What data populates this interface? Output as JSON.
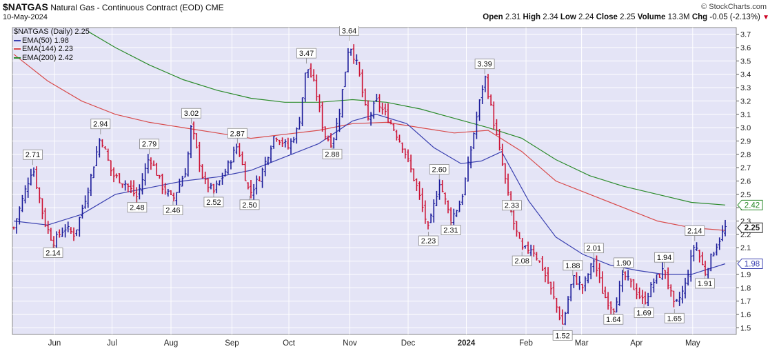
{
  "header": {
    "symbol": "$NATGAS",
    "description": "Natural Gas - Continuous Contract (EOD)",
    "exchange": "CME",
    "date": "10-May-2024",
    "brand": "© StockCharts.com",
    "quote": {
      "open_label": "Open",
      "open": "2.31",
      "high_label": "High",
      "high": "2.34",
      "low_label": "Low",
      "low": "2.24",
      "close_label": "Close",
      "close": "2.25",
      "volume_label": "Volume",
      "volume": "13.3M",
      "chg_label": "Chg",
      "chg": "-0.05 (-2.13%)"
    }
  },
  "legend": {
    "main": "$NATGAS (Daily) 2.25",
    "ema50": "EMA(50) 1.98",
    "ema144": "EMA(144) 2.23",
    "ema200": "EMA(200) 2.42"
  },
  "colors": {
    "plot_bg": "#e4e4f6",
    "grid": "#ffffff",
    "up": "#1a1a99",
    "down": "#cc1133",
    "ema50": "#3a40b0",
    "ema144": "#d84a4a",
    "ema200": "#2a8a2a"
  },
  "chart_data": {
    "type": "ohlc",
    "ylim": [
      1.45,
      3.75
    ],
    "y_ticks": [
      "1.5",
      "1.6",
      "1.7",
      "1.8",
      "1.9",
      "2.0",
      "2.1",
      "2.2",
      "2.3",
      "2.4",
      "2.5",
      "2.6",
      "2.7",
      "2.8",
      "2.9",
      "3.0",
      "3.1",
      "3.2",
      "3.3",
      "3.4",
      "3.5",
      "3.6",
      "3.7"
    ],
    "month_labels": [
      {
        "label": "Jun",
        "t": 0.06
      },
      {
        "label": "Jul",
        "t": 0.145
      },
      {
        "label": "Aug",
        "t": 0.232
      },
      {
        "label": "Sep",
        "t": 0.322
      },
      {
        "label": "Oct",
        "t": 0.406
      },
      {
        "label": "Nov",
        "t": 0.496
      },
      {
        "label": "Dec",
        "t": 0.582
      },
      {
        "label": "2024",
        "t": 0.668
      },
      {
        "label": "Feb",
        "t": 0.756
      },
      {
        "label": "Mar",
        "t": 0.838
      },
      {
        "label": "Apr",
        "t": 0.919
      },
      {
        "label": "May",
        "t": 1.002
      }
    ],
    "price_path": [
      [
        0.0,
        2.25
      ],
      [
        0.015,
        2.5
      ],
      [
        0.028,
        2.71
      ],
      [
        0.045,
        2.3
      ],
      [
        0.058,
        2.14
      ],
      [
        0.075,
        2.25
      ],
      [
        0.09,
        2.2
      ],
      [
        0.11,
        2.55
      ],
      [
        0.128,
        2.94
      ],
      [
        0.145,
        2.65
      ],
      [
        0.165,
        2.58
      ],
      [
        0.182,
        2.48
      ],
      [
        0.2,
        2.79
      ],
      [
        0.22,
        2.55
      ],
      [
        0.235,
        2.46
      ],
      [
        0.255,
        2.7
      ],
      [
        0.262,
        3.02
      ],
      [
        0.28,
        2.6
      ],
      [
        0.295,
        2.52
      ],
      [
        0.31,
        2.65
      ],
      [
        0.33,
        2.87
      ],
      [
        0.348,
        2.5
      ],
      [
        0.365,
        2.65
      ],
      [
        0.385,
        2.95
      ],
      [
        0.405,
        2.85
      ],
      [
        0.42,
        3.0
      ],
      [
        0.432,
        3.47
      ],
      [
        0.445,
        3.3
      ],
      [
        0.458,
        2.95
      ],
      [
        0.47,
        2.88
      ],
      [
        0.48,
        3.1
      ],
      [
        0.495,
        3.64
      ],
      [
        0.508,
        3.45
      ],
      [
        0.522,
        3.05
      ],
      [
        0.535,
        3.2
      ],
      [
        0.555,
        3.05
      ],
      [
        0.575,
        2.85
      ],
      [
        0.595,
        2.55
      ],
      [
        0.612,
        2.23
      ],
      [
        0.628,
        2.6
      ],
      [
        0.645,
        2.31
      ],
      [
        0.66,
        2.45
      ],
      [
        0.67,
        2.7
      ],
      [
        0.682,
        3.05
      ],
      [
        0.695,
        3.39
      ],
      [
        0.71,
        3.0
      ],
      [
        0.722,
        2.7
      ],
      [
        0.735,
        2.33
      ],
      [
        0.75,
        2.08
      ],
      [
        0.765,
        2.1
      ],
      [
        0.78,
        1.95
      ],
      [
        0.795,
        1.75
      ],
      [
        0.81,
        1.52
      ],
      [
        0.825,
        1.88
      ],
      [
        0.84,
        1.8
      ],
      [
        0.856,
        2.01
      ],
      [
        0.87,
        1.75
      ],
      [
        0.885,
        1.64
      ],
      [
        0.9,
        1.9
      ],
      [
        0.915,
        1.8
      ],
      [
        0.93,
        1.69
      ],
      [
        0.945,
        1.85
      ],
      [
        0.96,
        1.94
      ],
      [
        0.975,
        1.65
      ],
      [
        0.99,
        1.8
      ],
      [
        1.005,
        2.14
      ],
      [
        1.02,
        1.91
      ],
      [
        1.035,
        2.1
      ],
      [
        1.05,
        2.25
      ]
    ],
    "ema50": [
      [
        0.0,
        2.3
      ],
      [
        0.05,
        2.27
      ],
      [
        0.1,
        2.35
      ],
      [
        0.15,
        2.5
      ],
      [
        0.2,
        2.55
      ],
      [
        0.25,
        2.6
      ],
      [
        0.3,
        2.63
      ],
      [
        0.35,
        2.68
      ],
      [
        0.4,
        2.78
      ],
      [
        0.45,
        2.88
      ],
      [
        0.5,
        3.05
      ],
      [
        0.535,
        3.1
      ],
      [
        0.58,
        3.03
      ],
      [
        0.62,
        2.85
      ],
      [
        0.66,
        2.73
      ],
      [
        0.69,
        2.75
      ],
      [
        0.72,
        2.82
      ],
      [
        0.76,
        2.45
      ],
      [
        0.8,
        2.18
      ],
      [
        0.84,
        2.05
      ],
      [
        0.88,
        1.97
      ],
      [
        0.92,
        1.93
      ],
      [
        0.96,
        1.9
      ],
      [
        1.0,
        1.9
      ],
      [
        1.05,
        1.98
      ]
    ],
    "ema144": [
      [
        0.0,
        3.55
      ],
      [
        0.05,
        3.35
      ],
      [
        0.1,
        3.2
      ],
      [
        0.15,
        3.1
      ],
      [
        0.2,
        3.04
      ],
      [
        0.25,
        3.0
      ],
      [
        0.3,
        2.96
      ],
      [
        0.35,
        2.92
      ],
      [
        0.4,
        2.95
      ],
      [
        0.45,
        2.98
      ],
      [
        0.5,
        3.03
      ],
      [
        0.55,
        3.04
      ],
      [
        0.6,
        3.0
      ],
      [
        0.65,
        2.96
      ],
      [
        0.7,
        2.98
      ],
      [
        0.75,
        2.82
      ],
      [
        0.8,
        2.6
      ],
      [
        0.85,
        2.5
      ],
      [
        0.9,
        2.4
      ],
      [
        0.95,
        2.3
      ],
      [
        1.0,
        2.25
      ],
      [
        1.05,
        2.23
      ]
    ],
    "ema200": [
      [
        0.11,
        3.72
      ],
      [
        0.15,
        3.6
      ],
      [
        0.2,
        3.47
      ],
      [
        0.25,
        3.36
      ],
      [
        0.3,
        3.28
      ],
      [
        0.35,
        3.22
      ],
      [
        0.4,
        3.19
      ],
      [
        0.45,
        3.19
      ],
      [
        0.5,
        3.21
      ],
      [
        0.55,
        3.19
      ],
      [
        0.6,
        3.14
      ],
      [
        0.65,
        3.07
      ],
      [
        0.7,
        3.0
      ],
      [
        0.75,
        2.92
      ],
      [
        0.8,
        2.76
      ],
      [
        0.85,
        2.64
      ],
      [
        0.9,
        2.56
      ],
      [
        0.95,
        2.5
      ],
      [
        1.0,
        2.44
      ],
      [
        1.05,
        2.42
      ]
    ],
    "annotations": [
      {
        "label": "2.71",
        "t": 0.028,
        "y": 2.71,
        "pos": "above"
      },
      {
        "label": "2.14",
        "t": 0.058,
        "y": 2.14,
        "pos": "below"
      },
      {
        "label": "2.94",
        "t": 0.128,
        "y": 2.94,
        "pos": "above"
      },
      {
        "label": "2.48",
        "t": 0.182,
        "y": 2.48,
        "pos": "below"
      },
      {
        "label": "2.79",
        "t": 0.2,
        "y": 2.79,
        "pos": "above"
      },
      {
        "label": "2.46",
        "t": 0.235,
        "y": 2.46,
        "pos": "below"
      },
      {
        "label": "3.02",
        "t": 0.262,
        "y": 3.02,
        "pos": "above"
      },
      {
        "label": "2.52",
        "t": 0.295,
        "y": 2.52,
        "pos": "below"
      },
      {
        "label": "2.87",
        "t": 0.33,
        "y": 2.87,
        "pos": "above"
      },
      {
        "label": "2.50",
        "t": 0.348,
        "y": 2.5,
        "pos": "below"
      },
      {
        "label": "3.47",
        "t": 0.432,
        "y": 3.47,
        "pos": "above"
      },
      {
        "label": "2.88",
        "t": 0.47,
        "y": 2.88,
        "pos": "below"
      },
      {
        "label": "3.64",
        "t": 0.495,
        "y": 3.64,
        "pos": "above"
      },
      {
        "label": "2.60",
        "t": 0.628,
        "y": 2.6,
        "pos": "above"
      },
      {
        "label": "2.23",
        "t": 0.612,
        "y": 2.23,
        "pos": "below"
      },
      {
        "label": "2.31",
        "t": 0.645,
        "y": 2.31,
        "pos": "below"
      },
      {
        "label": "3.39",
        "t": 0.695,
        "y": 3.39,
        "pos": "above"
      },
      {
        "label": "2.33",
        "t": 0.735,
        "y": 2.33,
        "pos": "above"
      },
      {
        "label": "2.08",
        "t": 0.75,
        "y": 2.08,
        "pos": "below"
      },
      {
        "label": "1.52",
        "t": 0.81,
        "y": 1.52,
        "pos": "below"
      },
      {
        "label": "1.88",
        "t": 0.825,
        "y": 1.88,
        "pos": "above"
      },
      {
        "label": "2.01",
        "t": 0.856,
        "y": 2.01,
        "pos": "above"
      },
      {
        "label": "1.64",
        "t": 0.885,
        "y": 1.64,
        "pos": "below"
      },
      {
        "label": "1.90",
        "t": 0.9,
        "y": 1.9,
        "pos": "above"
      },
      {
        "label": "1.69",
        "t": 0.93,
        "y": 1.69,
        "pos": "below"
      },
      {
        "label": "1.94",
        "t": 0.96,
        "y": 1.94,
        "pos": "above"
      },
      {
        "label": "1.65",
        "t": 0.975,
        "y": 1.65,
        "pos": "below"
      },
      {
        "label": "2.14",
        "t": 1.005,
        "y": 2.14,
        "pos": "above"
      },
      {
        "label": "1.91",
        "t": 1.02,
        "y": 1.91,
        "pos": "below"
      }
    ],
    "right_tags": [
      {
        "label": "2.42",
        "y": 2.42,
        "color": "#2a8a2a"
      },
      {
        "label": "2.25",
        "y": 2.25,
        "color": "#222222",
        "bold": true
      },
      {
        "label": "1.98",
        "y": 1.98,
        "color": "#3a40b0"
      }
    ]
  }
}
